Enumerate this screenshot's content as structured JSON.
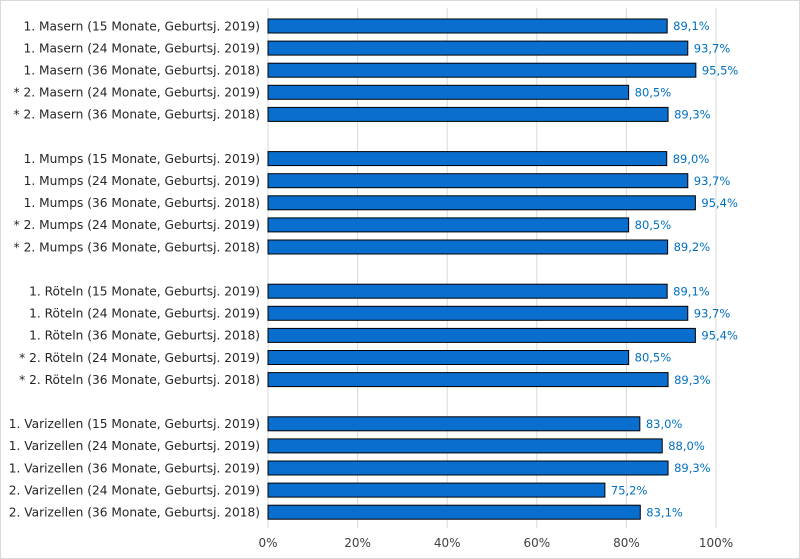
{
  "chart_data": {
    "type": "bar",
    "orientation": "horizontal",
    "groups": [
      {
        "categories": [
          "1. Masern (15 Monate, Geburtsj. 2019)",
          "1. Masern (24 Monate, Geburtsj. 2019)",
          "1. Masern (36 Monate, Geburtsj. 2018)",
          "* 2. Masern (24 Monate, Geburtsj. 2019)",
          "* 2. Masern (36 Monate, Geburtsj. 2018)"
        ],
        "values": [
          89.1,
          93.7,
          95.5,
          80.5,
          89.3
        ],
        "value_labels": [
          "89,1%",
          "93,7%",
          "95,5%",
          "80,5%",
          "89,3%"
        ]
      },
      {
        "categories": [
          "1. Mumps (15 Monate, Geburtsj. 2019)",
          "1. Mumps (24 Monate, Geburtsj. 2019)",
          "1. Mumps (36 Monate, Geburtsj. 2018)",
          "* 2. Mumps (24 Monate, Geburtsj. 2019)",
          "* 2. Mumps (36 Monate, Geburtsj. 2018)"
        ],
        "values": [
          89.0,
          93.7,
          95.4,
          80.5,
          89.2
        ],
        "value_labels": [
          "89,0%",
          "93,7%",
          "95,4%",
          "80,5%",
          "89,2%"
        ]
      },
      {
        "categories": [
          "1. Röteln (15 Monate, Geburtsj. 2019)",
          "1. Röteln (24 Monate, Geburtsj. 2019)",
          "1. Röteln (36 Monate, Geburtsj. 2018)",
          "* 2. Röteln (24 Monate, Geburtsj. 2019)",
          "* 2. Röteln (36 Monate, Geburtsj. 2018)"
        ],
        "values": [
          89.1,
          93.7,
          95.4,
          80.5,
          89.3
        ],
        "value_labels": [
          "89,1%",
          "93,7%",
          "95,4%",
          "80,5%",
          "89,3%"
        ]
      },
      {
        "categories": [
          "1. Varizellen (15 Monate, Geburtsj. 2019)",
          "1. Varizellen (24 Monate, Geburtsj. 2019)",
          "1. Varizellen (36 Monate, Geburtsj. 2019)",
          "2. Varizellen (24 Monate, Geburtsj. 2019)",
          "2. Varizellen (36 Monate, Geburtsj. 2018)"
        ],
        "values": [
          83.0,
          88.0,
          89.3,
          75.2,
          83.1
        ],
        "value_labels": [
          "83,0%",
          "88,0%",
          "89,3%",
          "75,2%",
          "83,1%"
        ]
      }
    ],
    "x_ticks": [
      "0%",
      "20%",
      "40%",
      "60%",
      "80%",
      "100%"
    ],
    "xlim": [
      0,
      100
    ],
    "grid": true,
    "legend": "none",
    "title": "",
    "xlabel": "",
    "ylabel": "",
    "colors": {
      "bar_fill": "#0A6ECF",
      "bar_stroke": "#000000",
      "value_label": "#0070C0",
      "grid": "#d9d9d9",
      "category_text": "#262626",
      "tick_text": "#404040"
    }
  }
}
